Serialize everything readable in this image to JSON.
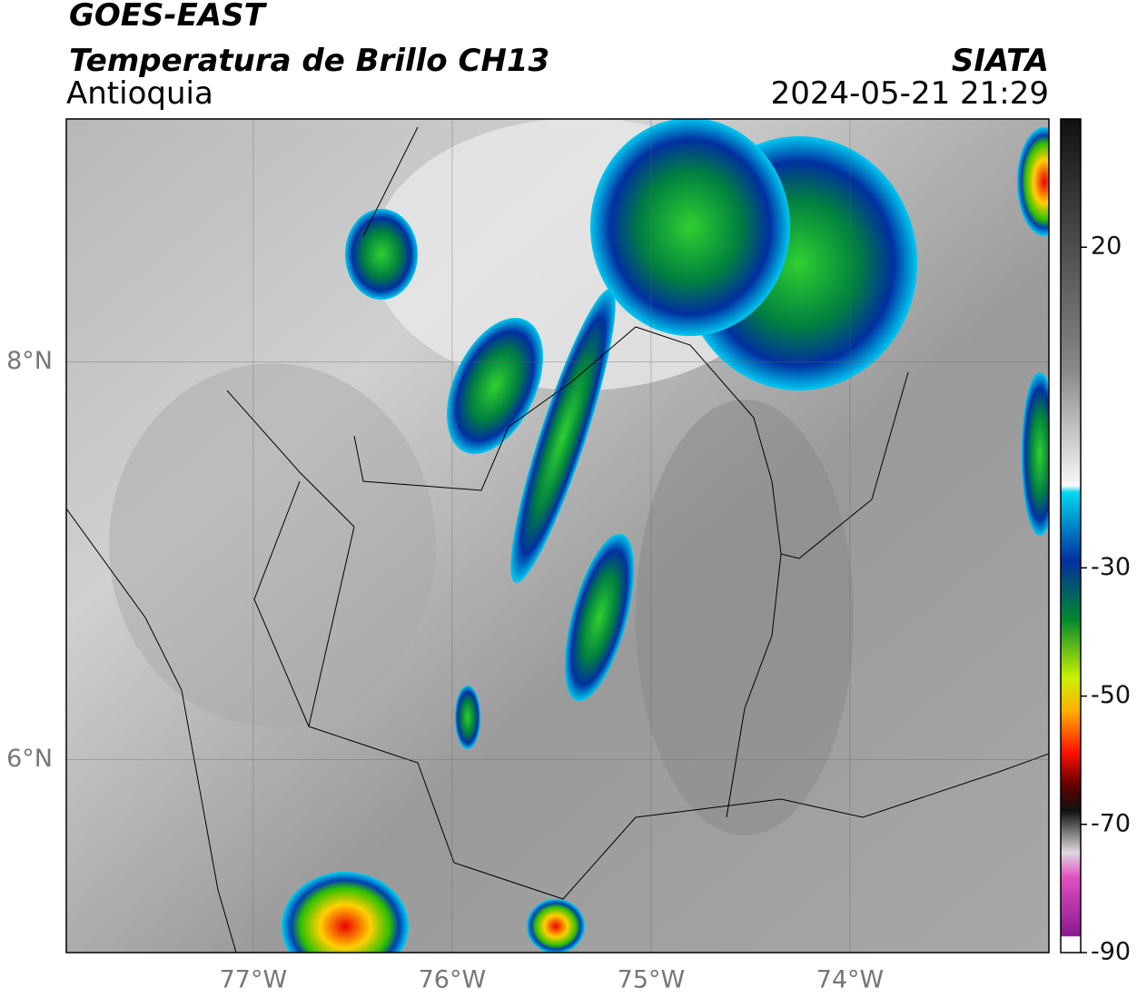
{
  "header": {
    "title": "GOES-EAST",
    "subtitle": "Temperatura de Brillo CH13",
    "region": "Antioquia",
    "source": "SIATA",
    "datetime": "2024-05-21 21:29"
  },
  "map": {
    "xlim": [
      -77.94,
      -73.0
    ],
    "ylim": [
      5.03,
      9.22
    ],
    "xticks": [
      {
        "value": -77,
        "label": "77°W"
      },
      {
        "value": -76,
        "label": "76°W"
      },
      {
        "value": -75,
        "label": "75°W"
      },
      {
        "value": -74,
        "label": "74°W"
      }
    ],
    "yticks": [
      {
        "value": 8,
        "label": "8°N"
      },
      {
        "value": 6,
        "label": "6°N"
      }
    ]
  },
  "colorbar": {
    "lim": [
      -90,
      40
    ],
    "ticks": [
      20,
      -30,
      -50,
      -70,
      -90
    ]
  }
}
